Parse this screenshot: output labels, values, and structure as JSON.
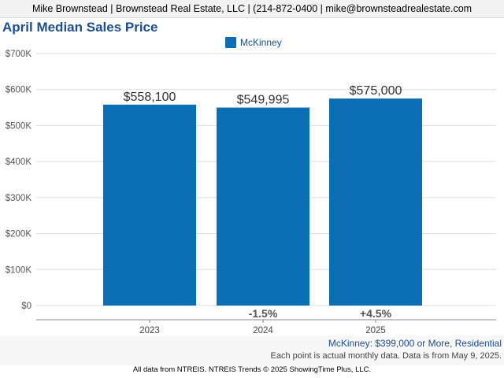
{
  "header": {
    "contact_line": "Mike Brownstead | Brownstead Real Estate, LLC | (214-872-0400 | mike@brownsteadrealestate.com"
  },
  "chart_data": {
    "type": "bar",
    "title": "April Median Sales Price",
    "categories": [
      "2023",
      "2024",
      "2025"
    ],
    "series": [
      {
        "name": "McKinney",
        "values": [
          558100,
          549995,
          575000
        ]
      }
    ],
    "value_labels": [
      "$558,100",
      "$549,995",
      "$575,000"
    ],
    "change_labels": [
      "",
      "-1.5%",
      "+4.5%"
    ],
    "ylim": [
      0,
      700000
    ],
    "yticks": [
      0,
      100000,
      200000,
      300000,
      400000,
      500000,
      600000,
      700000
    ],
    "ytick_labels": [
      "$0",
      "$100K",
      "$200K",
      "$300K",
      "$400K",
      "$500K",
      "$600K",
      "$700K"
    ],
    "xlabel": "",
    "ylabel": "",
    "grid": true,
    "legend_position": "top-center",
    "colors": {
      "bar": "#0b6eb4",
      "title": "#1d4f8c",
      "change_text": "#555555"
    }
  },
  "footer": {
    "series_note": "McKinney: $399,000 or More, Residential",
    "data_note": "Each point is actual monthly data. Data is from May 9, 2025.",
    "source": "All data from NTREIS. NTREIS Trends © 2025 ShowingTime Plus, LLC."
  }
}
